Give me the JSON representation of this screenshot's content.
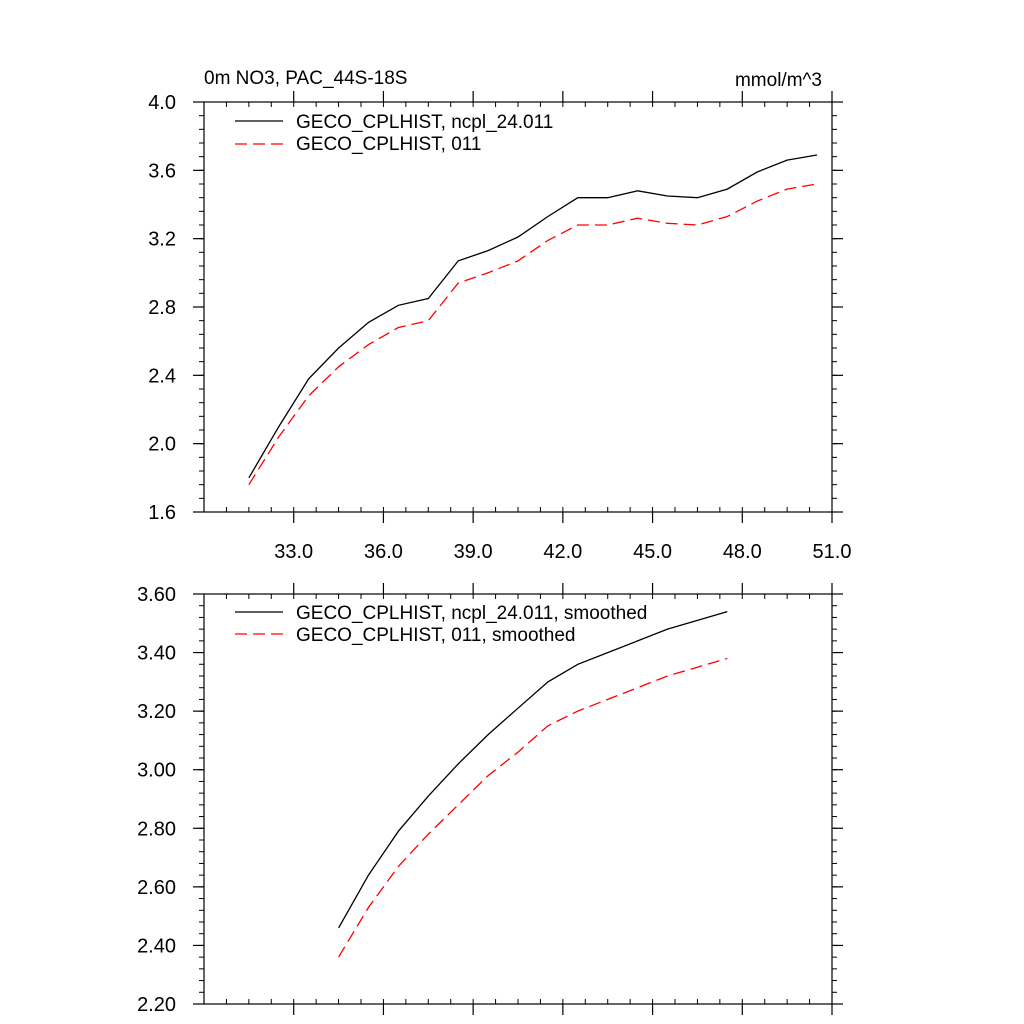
{
  "chart_data": [
    {
      "type": "line",
      "title": "0m NO3, PAC_44S-18S",
      "units": "mmol/m^3",
      "xlim": [
        30.0,
        51.0
      ],
      "ylim": [
        1.6,
        4.0
      ],
      "x_ticks": [
        33.0,
        36.0,
        39.0,
        42.0,
        45.0,
        48.0,
        51.0
      ],
      "x_tick_labels": [
        "33.0",
        "36.0",
        "39.0",
        "42.0",
        "45.0",
        "48.0",
        "51.0"
      ],
      "y_ticks": [
        1.6,
        2.0,
        2.4,
        2.8,
        3.2,
        3.6,
        4.0
      ],
      "y_tick_labels": [
        "1.6",
        "2.0",
        "2.4",
        "2.8",
        "3.2",
        "3.6",
        "4.0"
      ],
      "legend_position": "top-left",
      "grid": false,
      "x": [
        31.5,
        32.5,
        33.5,
        34.5,
        35.5,
        36.5,
        37.5,
        38.5,
        39.5,
        40.5,
        41.5,
        42.5,
        43.5,
        44.5,
        45.5,
        46.5,
        47.5,
        48.5,
        49.5,
        50.5
      ],
      "series": [
        {
          "name": "GECO_CPLHIST, ncpl_24.011",
          "color": "#000000",
          "dash": "solid",
          "values": [
            1.8,
            2.1,
            2.38,
            2.56,
            2.71,
            2.81,
            2.85,
            3.07,
            3.13,
            3.21,
            3.33,
            3.44,
            3.44,
            3.48,
            3.45,
            3.44,
            3.49,
            3.59,
            3.66,
            3.69
          ]
        },
        {
          "name": "GECO_CPLHIST, 011",
          "color": "#ff0000",
          "dash": "dashed",
          "values": [
            1.76,
            2.04,
            2.28,
            2.45,
            2.58,
            2.68,
            2.72,
            2.94,
            3.0,
            3.07,
            3.19,
            3.28,
            3.28,
            3.32,
            3.29,
            3.28,
            3.33,
            3.42,
            3.49,
            3.52
          ]
        }
      ]
    },
    {
      "type": "line",
      "xlim": [
        30.0,
        51.0
      ],
      "ylim": [
        2.2,
        3.6
      ],
      "x_ticks": [
        33.0,
        36.0,
        39.0,
        42.0,
        45.0,
        48.0,
        51.0
      ],
      "y_ticks": [
        2.2,
        2.4,
        2.6,
        2.8,
        3.0,
        3.2,
        3.4,
        3.6
      ],
      "y_tick_labels": [
        "2.20",
        "2.40",
        "2.60",
        "2.80",
        "3.00",
        "3.20",
        "3.40",
        "3.60"
      ],
      "legend_position": "top-left",
      "grid": false,
      "x": [
        34.5,
        35.5,
        36.5,
        37.5,
        38.5,
        39.5,
        40.5,
        41.5,
        42.5,
        43.5,
        44.5,
        45.5,
        46.5,
        47.5
      ],
      "series": [
        {
          "name": "GECO_CPLHIST, ncpl_24.011, smoothed",
          "color": "#000000",
          "dash": "solid",
          "values": [
            2.46,
            2.64,
            2.79,
            2.91,
            3.02,
            3.12,
            3.21,
            3.3,
            3.36,
            3.4,
            3.44,
            3.48,
            3.51,
            3.54
          ]
        },
        {
          "name": "GECO_CPLHIST, 011, smoothed",
          "color": "#ff0000",
          "dash": "dashed",
          "values": [
            2.36,
            2.53,
            2.67,
            2.78,
            2.88,
            2.98,
            3.06,
            3.15,
            3.2,
            3.24,
            3.28,
            3.32,
            3.35,
            3.38
          ]
        }
      ]
    }
  ]
}
